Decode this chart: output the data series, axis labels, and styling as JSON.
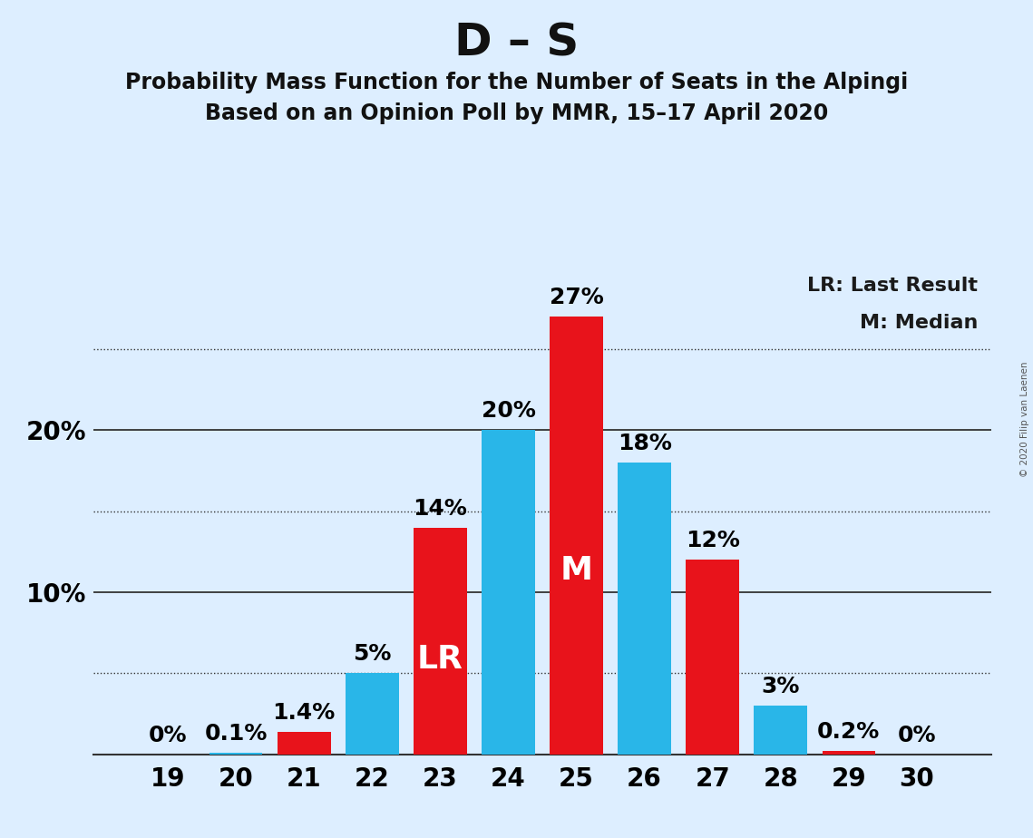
{
  "title": "D – S",
  "subtitle1": "Probability Mass Function for the Number of Seats in the Alpingi",
  "subtitle2": "Based on an Opinion Poll by MMR, 15–17 April 2020",
  "copyright": "© 2020 Filip van Laenen",
  "seats": [
    19,
    20,
    21,
    22,
    23,
    24,
    25,
    26,
    27,
    28,
    29,
    30
  ],
  "values": [
    0.0,
    0.1,
    1.4,
    5.0,
    14.0,
    20.0,
    27.0,
    18.0,
    12.0,
    3.0,
    0.2,
    0.0
  ],
  "labels": [
    "0%",
    "0.1%",
    "1.4%",
    "5%",
    "14%",
    "20%",
    "27%",
    "18%",
    "12%",
    "3%",
    "0.2%",
    "0%"
  ],
  "colors": [
    "#e8131b",
    "#29b6e8",
    "#e8131b",
    "#29b6e8",
    "#e8131b",
    "#29b6e8",
    "#e8131b",
    "#29b6e8",
    "#e8131b",
    "#29b6e8",
    "#e8131b",
    "#29b6e8"
  ],
  "lr_seat": 23,
  "median_seat": 25,
  "lr_label": "LR",
  "median_label": "M",
  "legend_lr": "LR: Last Result",
  "legend_m": "M: Median",
  "background_color": "#ddeeff",
  "ylim": [
    0,
    30
  ],
  "grid_color": "#333333",
  "title_fontsize": 36,
  "subtitle_fontsize": 17,
  "tick_fontsize": 20,
  "label_fontsize": 18,
  "bar_width": 0.78
}
